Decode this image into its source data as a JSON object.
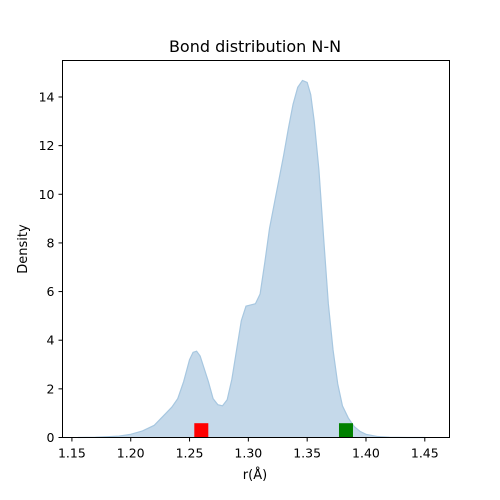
{
  "chart_data": {
    "type": "area",
    "title": "Bond distribution N-N",
    "xlabel": "r(Å)",
    "ylabel": "Density",
    "xlim": [
      1.142,
      1.471
    ],
    "ylim": [
      0,
      15.5
    ],
    "xticks": [
      1.15,
      1.2,
      1.25,
      1.3,
      1.35,
      1.4,
      1.45
    ],
    "xtick_labels": [
      "1.15",
      "1.20",
      "1.25",
      "1.30",
      "1.35",
      "1.40",
      "1.45"
    ],
    "yticks": [
      0,
      2,
      4,
      6,
      8,
      10,
      12,
      14
    ],
    "ytick_labels": [
      "0",
      "2",
      "4",
      "6",
      "8",
      "10",
      "12",
      "14"
    ],
    "grid": false,
    "fill_color": "#c5d9ea",
    "line_color": "#a7c7e0",
    "series": [
      {
        "x": [
          1.155,
          1.17,
          1.18,
          1.19,
          1.2,
          1.21,
          1.22,
          1.23,
          1.235,
          1.24,
          1.245,
          1.25,
          1.253,
          1.256,
          1.259,
          1.262,
          1.266,
          1.27,
          1.274,
          1.278,
          1.282,
          1.286,
          1.29,
          1.294,
          1.298,
          1.302,
          1.306,
          1.31,
          1.314,
          1.318,
          1.322,
          1.326,
          1.33,
          1.334,
          1.338,
          1.342,
          1.346,
          1.35,
          1.353,
          1.356,
          1.36,
          1.364,
          1.368,
          1.372,
          1.376,
          1.38,
          1.385,
          1.39,
          1.395,
          1.4,
          1.41,
          1.42,
          1.435,
          1.45
        ],
        "y": [
          0.0,
          0.01,
          0.03,
          0.06,
          0.13,
          0.27,
          0.5,
          1.0,
          1.25,
          1.6,
          2.3,
          3.2,
          3.5,
          3.55,
          3.35,
          2.9,
          2.3,
          1.6,
          1.35,
          1.3,
          1.55,
          2.4,
          3.6,
          4.8,
          5.4,
          5.45,
          5.5,
          5.9,
          7.2,
          8.6,
          9.6,
          10.6,
          11.6,
          12.7,
          13.7,
          14.4,
          14.68,
          14.6,
          14.1,
          13.0,
          11.0,
          8.2,
          5.5,
          3.6,
          2.2,
          1.3,
          0.8,
          0.45,
          0.25,
          0.13,
          0.04,
          0.01,
          0.0,
          0.0
        ]
      }
    ],
    "markers": [
      {
        "x": 1.26,
        "y": 0.3,
        "color": "#ff0000",
        "shape": "square"
      },
      {
        "x": 1.383,
        "y": 0.3,
        "color": "#008000",
        "shape": "square"
      }
    ]
  }
}
